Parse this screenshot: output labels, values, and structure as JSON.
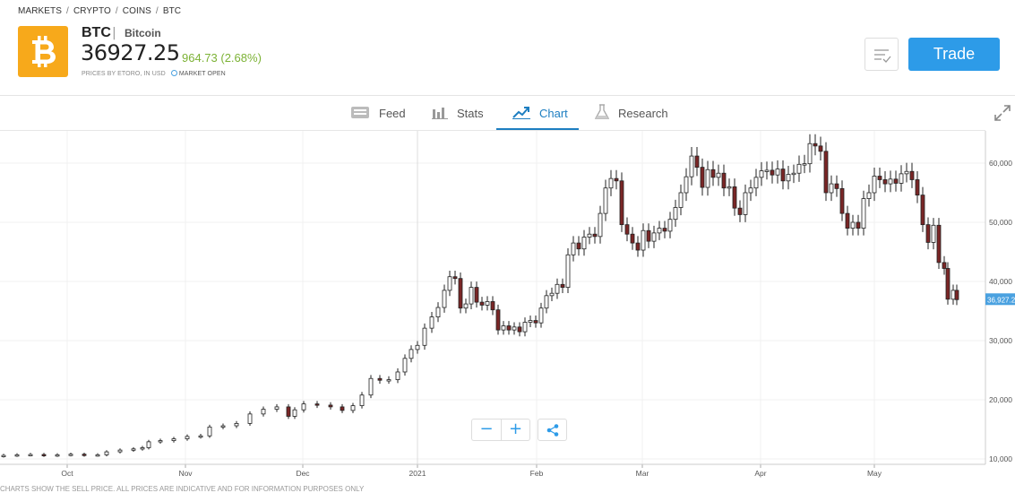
{
  "breadcrumb": [
    "MARKETS",
    "CRYPTO",
    "COINS",
    "BTC"
  ],
  "instrument": {
    "symbol": "BTC",
    "divider": "|",
    "name": "Bitcoin",
    "price": "36927.25",
    "change": "964.73 (2.68%)",
    "prices_by": "PRICES BY ETORO, IN USD",
    "market_status": "MARKET OPEN",
    "logo_icon": "bitcoin-icon",
    "brand_color": "#f7a91b"
  },
  "actions": {
    "watchlist_icon": "watchlist-icon",
    "trade_label": "Trade"
  },
  "tabs": [
    {
      "label": "Feed",
      "icon": "feed-icon"
    },
    {
      "label": "Stats",
      "icon": "stats-icon"
    },
    {
      "label": "Chart",
      "icon": "chart-icon",
      "active": true
    },
    {
      "label": "Research",
      "icon": "research-icon"
    }
  ],
  "controls": {
    "zoom_out": "−",
    "zoom_in": "+",
    "share_icon": "share-icon",
    "expand_icon": "expand-icon"
  },
  "disclaimer": "CHARTS SHOW THE SELL PRICE. ALL PRICES ARE INDICATIVE AND FOR INFORMATION PURPOSES ONLY",
  "chart_data": {
    "type": "candlestick",
    "x_tick_labels": [
      "Oct",
      "Nov",
      "Dec",
      "2021",
      "Feb",
      "Mar",
      "Apr",
      "May"
    ],
    "y_tick_labels": [
      "60,000",
      "50,000",
      "40,000",
      "30,000",
      "20,000",
      "10,000"
    ],
    "y_ticks": [
      60000,
      50000,
      40000,
      30000,
      20000,
      10000
    ],
    "ylim": [
      9800,
      65000
    ],
    "last_price_label": "36,927.2",
    "last_price": 36927.25,
    "up_color": "#ffffff",
    "down_color": "#7a2626",
    "last_label_color": "#4aa1e0",
    "points": [
      {
        "x": 0,
        "c": 10600
      },
      {
        "x": 15,
        "c": 10700
      },
      {
        "x": 30,
        "c": 10750
      },
      {
        "x": 45,
        "c": 10600
      },
      {
        "x": 60,
        "c": 10700
      },
      {
        "x": 75,
        "c": 10800
      },
      {
        "x": 90,
        "c": 10650
      },
      {
        "x": 105,
        "c": 10700
      },
      {
        "x": 115,
        "c": 11200
      },
      {
        "x": 130,
        "c": 11500
      },
      {
        "x": 145,
        "c": 11700
      },
      {
        "x": 155,
        "c": 11900
      },
      {
        "x": 162,
        "c": 12900
      },
      {
        "x": 175,
        "c": 13100
      },
      {
        "x": 190,
        "c": 13400
      },
      {
        "x": 205,
        "c": 13800
      },
      {
        "x": 220,
        "c": 13900
      },
      {
        "x": 230,
        "c": 15400
      },
      {
        "x": 245,
        "c": 15600
      },
      {
        "x": 260,
        "c": 16000
      },
      {
        "x": 275,
        "c": 17600
      },
      {
        "x": 290,
        "c": 18400
      },
      {
        "x": 305,
        "c": 18800
      },
      {
        "x": 318,
        "c": 17200
      },
      {
        "x": 325,
        "c": 18300
      },
      {
        "x": 335,
        "c": 19300
      },
      {
        "x": 350,
        "c": 19100
      },
      {
        "x": 365,
        "c": 18800
      },
      {
        "x": 378,
        "c": 18200
      },
      {
        "x": 390,
        "c": 19000
      },
      {
        "x": 400,
        "c": 20800
      },
      {
        "x": 410,
        "c": 23600
      },
      {
        "x": 420,
        "c": 23300
      },
      {
        "x": 430,
        "c": 23400
      },
      {
        "x": 440,
        "c": 24700
      },
      {
        "x": 448,
        "c": 27000
      },
      {
        "x": 455,
        "c": 28500
      },
      {
        "x": 462,
        "c": 29200
      },
      {
        "x": 470,
        "c": 32100
      },
      {
        "x": 478,
        "c": 34000
      },
      {
        "x": 485,
        "c": 35600
      },
      {
        "x": 492,
        "c": 38500
      },
      {
        "x": 498,
        "c": 40800
      },
      {
        "x": 504,
        "c": 40500
      },
      {
        "x": 510,
        "c": 35500
      },
      {
        "x": 516,
        "c": 36200
      },
      {
        "x": 522,
        "c": 39000
      },
      {
        "x": 528,
        "c": 36500
      },
      {
        "x": 534,
        "c": 36000
      },
      {
        "x": 540,
        "c": 36600
      },
      {
        "x": 546,
        "c": 35200
      },
      {
        "x": 552,
        "c": 31800
      },
      {
        "x": 558,
        "c": 32500
      },
      {
        "x": 564,
        "c": 31800
      },
      {
        "x": 570,
        "c": 32300
      },
      {
        "x": 576,
        "c": 31500
      },
      {
        "x": 582,
        "c": 33100
      },
      {
        "x": 588,
        "c": 33400
      },
      {
        "x": 594,
        "c": 33000
      },
      {
        "x": 600,
        "c": 35500
      },
      {
        "x": 606,
        "c": 37600
      },
      {
        "x": 612,
        "c": 38000
      },
      {
        "x": 618,
        "c": 39500
      },
      {
        "x": 624,
        "c": 39000
      },
      {
        "x": 630,
        "c": 44500
      },
      {
        "x": 636,
        "c": 46500
      },
      {
        "x": 642,
        "c": 45500
      },
      {
        "x": 648,
        "c": 47500
      },
      {
        "x": 654,
        "c": 48000
      },
      {
        "x": 660,
        "c": 47600
      },
      {
        "x": 666,
        "c": 51500
      },
      {
        "x": 672,
        "c": 55800
      },
      {
        "x": 678,
        "c": 57400
      },
      {
        "x": 684,
        "c": 57000
      },
      {
        "x": 690,
        "c": 49600
      },
      {
        "x": 696,
        "c": 48000
      },
      {
        "x": 702,
        "c": 46500
      },
      {
        "x": 708,
        "c": 45300
      },
      {
        "x": 714,
        "c": 48600
      },
      {
        "x": 720,
        "c": 46800
      },
      {
        "x": 726,
        "c": 48200
      },
      {
        "x": 732,
        "c": 49000
      },
      {
        "x": 738,
        "c": 48500
      },
      {
        "x": 744,
        "c": 50500
      },
      {
        "x": 750,
        "c": 52500
      },
      {
        "x": 756,
        "c": 55000
      },
      {
        "x": 762,
        "c": 57700
      },
      {
        "x": 768,
        "c": 61200
      },
      {
        "x": 774,
        "c": 59300
      },
      {
        "x": 780,
        "c": 55900
      },
      {
        "x": 786,
        "c": 58900
      },
      {
        "x": 792,
        "c": 57600
      },
      {
        "x": 798,
        "c": 58300
      },
      {
        "x": 804,
        "c": 55800
      },
      {
        "x": 810,
        "c": 56000
      },
      {
        "x": 816,
        "c": 52400
      },
      {
        "x": 822,
        "c": 51300
      },
      {
        "x": 828,
        "c": 55000
      },
      {
        "x": 834,
        "c": 55800
      },
      {
        "x": 840,
        "c": 57600
      },
      {
        "x": 846,
        "c": 58700
      },
      {
        "x": 852,
        "c": 58800
      },
      {
        "x": 858,
        "c": 58000
      },
      {
        "x": 864,
        "c": 59000
      },
      {
        "x": 870,
        "c": 57000
      },
      {
        "x": 876,
        "c": 58100
      },
      {
        "x": 882,
        "c": 58300
      },
      {
        "x": 888,
        "c": 59800
      },
      {
        "x": 894,
        "c": 59900
      },
      {
        "x": 900,
        "c": 63300
      },
      {
        "x": 906,
        "c": 62900
      },
      {
        "x": 912,
        "c": 62000
      },
      {
        "x": 918,
        "c": 55000
      },
      {
        "x": 924,
        "c": 56500
      },
      {
        "x": 930,
        "c": 55700
      },
      {
        "x": 936,
        "c": 51500
      },
      {
        "x": 942,
        "c": 49000
      },
      {
        "x": 948,
        "c": 50000
      },
      {
        "x": 954,
        "c": 49000
      },
      {
        "x": 960,
        "c": 54000
      },
      {
        "x": 966,
        "c": 55000
      },
      {
        "x": 972,
        "c": 57800
      },
      {
        "x": 978,
        "c": 57200
      },
      {
        "x": 984,
        "c": 56500
      },
      {
        "x": 990,
        "c": 57300
      },
      {
        "x": 996,
        "c": 56600
      },
      {
        "x": 1002,
        "c": 58200
      },
      {
        "x": 1008,
        "c": 58600
      },
      {
        "x": 1014,
        "c": 57200
      },
      {
        "x": 1020,
        "c": 54600
      },
      {
        "x": 1026,
        "c": 49600
      },
      {
        "x": 1032,
        "c": 46600
      },
      {
        "x": 1038,
        "c": 49500
      },
      {
        "x": 1044,
        "c": 43200
      },
      {
        "x": 1050,
        "c": 42200
      },
      {
        "x": 1054,
        "c": 37000
      },
      {
        "x": 1060,
        "c": 38500
      },
      {
        "x": 1064,
        "c": 36927
      }
    ]
  }
}
